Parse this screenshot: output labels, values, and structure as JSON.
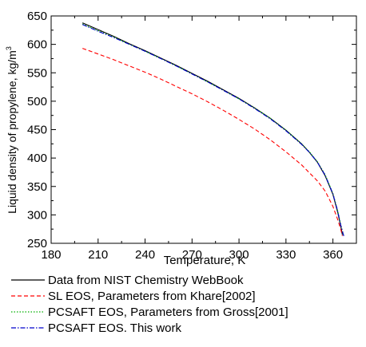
{
  "chart_data": {
    "type": "line",
    "xlabel": "Temperature, K",
    "ylabel_main": "Liquid density of propylene, kg/m",
    "ylabel_sup": "3",
    "xlim": [
      180,
      375
    ],
    "ylim": [
      250,
      650
    ],
    "xticks": [
      180,
      210,
      240,
      270,
      300,
      330,
      360
    ],
    "yticks": [
      250,
      300,
      350,
      400,
      450,
      500,
      550,
      600,
      650
    ],
    "grid": false,
    "legend_position": "bottom, below plot",
    "series": [
      {
        "name": "Data from NIST Chemistry WebBook",
        "color": "#000000",
        "dash": "solid",
        "x": [
          200,
          210,
          220,
          230,
          240,
          250,
          260,
          270,
          280,
          290,
          300,
          310,
          320,
          330,
          340,
          345,
          350,
          355,
          360,
          363,
          365,
          366
        ],
        "y": [
          638,
          626,
          614,
          601,
          589,
          576,
          563,
          549,
          535,
          520,
          505,
          488,
          470,
          449,
          425,
          410,
          393,
          369,
          336,
          305,
          280,
          265
        ]
      },
      {
        "name": "SL EOS, Parameters from Khare[2002]",
        "color": "#ff0000",
        "dash": "dashed",
        "x": [
          200,
          210,
          220,
          230,
          240,
          250,
          260,
          270,
          280,
          290,
          300,
          310,
          320,
          330,
          340,
          350,
          355,
          360,
          363,
          365,
          366
        ],
        "y": [
          593,
          583,
          573,
          562,
          551,
          539,
          526,
          513,
          499,
          484,
          468,
          451,
          432,
          411,
          388,
          360,
          342,
          315,
          292,
          275,
          263
        ]
      },
      {
        "name": "PCSAFT EOS, Parameters from Gross[2001]",
        "color": "#00b000",
        "dash": "dotted",
        "x": [
          200,
          210,
          220,
          230,
          240,
          250,
          260,
          270,
          280,
          290,
          300,
          310,
          320,
          330,
          340,
          345,
          350,
          355,
          360,
          363,
          365,
          367
        ],
        "y": [
          636,
          624,
          613,
          600,
          588,
          575,
          562,
          548,
          534,
          519,
          504,
          488,
          470,
          449,
          425,
          411,
          394,
          371,
          338,
          308,
          283,
          262
        ]
      },
      {
        "name": "PCSAFT EOS. This work",
        "color": "#0000cc",
        "dash": "dashdot",
        "x": [
          200,
          210,
          220,
          230,
          240,
          250,
          260,
          270,
          280,
          290,
          300,
          310,
          320,
          330,
          340,
          345,
          350,
          355,
          360,
          363,
          365,
          367
        ],
        "y": [
          635,
          623,
          612,
          600,
          588,
          575,
          562,
          548,
          534,
          519,
          504,
          487,
          469,
          448,
          424,
          410,
          393,
          370,
          337,
          307,
          282,
          262
        ]
      }
    ]
  }
}
